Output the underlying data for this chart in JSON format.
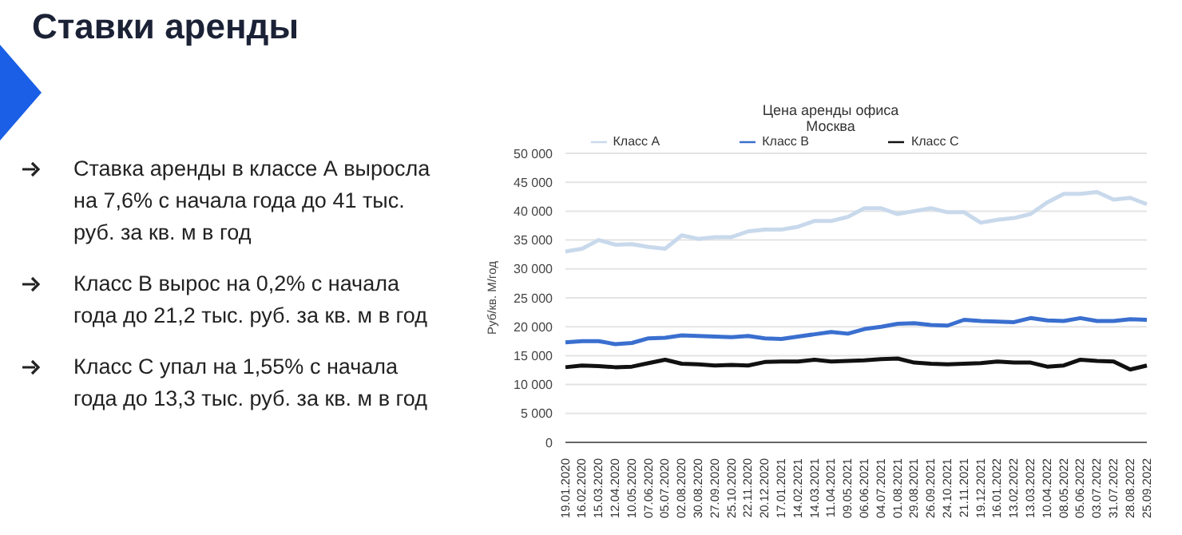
{
  "chart_data": {
    "type": "line",
    "title": "Цена аренды офиса",
    "subtitle": "Москва",
    "ylabel": "Руб/кв. М/год",
    "annotations": [
      "Ставки аренды",
      "Ставка аренды в классе А выросла на 7,6% с начала года до 41 тыс. руб. за кв. м в год",
      "Класс В вырос на 0,2% с начала года до 21,2 тыс. руб. за кв. м в год",
      "Класс С упал на 1,55% с начала года до 13,3 тыс. руб. за кв. м в год"
    ],
    "categories": [
      "19.01.2020",
      "16.02.2020",
      "15.03.2020",
      "12.04.2020",
      "10.05.2020",
      "07.06.2020",
      "05.07.2020",
      "02.08.2020",
      "30.08.2020",
      "27.09.2020",
      "25.10.2020",
      "22.11.2020",
      "20.12.2020",
      "17.01.2021",
      "14.02.2021",
      "14.03.2021",
      "11.04.2021",
      "09.05.2021",
      "06.06.2021",
      "04.07.2021",
      "01.08.2021",
      "29.08.2021",
      "26.09.2021",
      "24.10.2021",
      "21.11.2021",
      "19.12.2021",
      "16.01.2022",
      "13.02.2022",
      "13.03.2022",
      "10.04.2022",
      "08.05.2022",
      "05.06.2022",
      "03.07.2022",
      "31.07.2022",
      "28.08.2022",
      "25.09.2022"
    ],
    "series": [
      {
        "name": "Класс А",
        "color": "#c9d9ec",
        "values": [
          33000,
          33500,
          35000,
          34200,
          34300,
          33800,
          33500,
          35800,
          35200,
          35500,
          35500,
          36500,
          36800,
          36800,
          37300,
          38300,
          38300,
          39000,
          40500,
          40500,
          39500,
          40000,
          40500,
          39800,
          39800,
          38000,
          38500,
          38800,
          39500,
          41500,
          43000,
          43000,
          43300,
          42000,
          42300,
          41200
        ]
      },
      {
        "name": "Класс В",
        "color": "#3a6fcf",
        "values": [
          17300,
          17500,
          17500,
          17000,
          17200,
          18000,
          18100,
          18500,
          18400,
          18300,
          18200,
          18400,
          18000,
          17900,
          18300,
          18700,
          19100,
          18800,
          19600,
          20000,
          20500,
          20600,
          20300,
          20200,
          21200,
          21000,
          20900,
          20800,
          21500,
          21100,
          21000,
          21500,
          21000,
          21000,
          21300,
          21200
        ]
      },
      {
        "name": "Класс С",
        "color": "#111111",
        "values": [
          13000,
          13300,
          13200,
          13000,
          13100,
          13700,
          14300,
          13600,
          13500,
          13300,
          13400,
          13300,
          13900,
          14000,
          14000,
          14300,
          14000,
          14100,
          14200,
          14400,
          14500,
          13800,
          13600,
          13500,
          13600,
          13700,
          14000,
          13800,
          13800,
          13100,
          13300,
          14300,
          14100,
          14000,
          12600,
          13300
        ]
      }
    ],
    "ylim": [
      0,
      50000
    ],
    "yticks": [
      0,
      5000,
      10000,
      15000,
      20000,
      25000,
      30000,
      35000,
      40000,
      45000,
      50000
    ],
    "grid": "y",
    "legend": "top",
    "marker": "none",
    "line_style": "solid"
  }
}
